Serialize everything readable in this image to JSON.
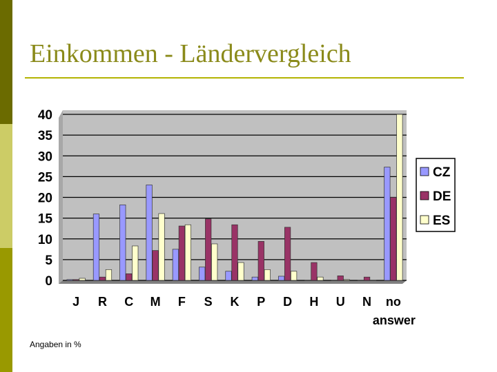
{
  "slide": {
    "title": "Einkommen - Ländervergleich",
    "note": "Angaben in %"
  },
  "colors": {
    "stripe_dark": "#6b6b00",
    "stripe_light": "#cccc66",
    "stripe_mid": "#999900",
    "title": "#8a8a1a",
    "plot_bg": "#c0c0c0"
  },
  "chart_data": {
    "type": "bar",
    "title": "",
    "xlabel": "",
    "ylabel": "",
    "ylim": [
      0,
      40
    ],
    "yticks": [
      0,
      5,
      10,
      15,
      20,
      25,
      30,
      35,
      40
    ],
    "grid": true,
    "legend_position": "right",
    "categories": [
      "J",
      "R",
      "C",
      "M",
      "F",
      "S",
      "K",
      "P",
      "D",
      "H",
      "U",
      "N",
      "no answer"
    ],
    "series": [
      {
        "name": "CZ",
        "color": "#9999ff",
        "values": [
          0.2,
          16,
          18.2,
          23,
          7.5,
          3.2,
          2.2,
          0.8,
          1.0,
          0,
          0,
          0,
          27.3
        ]
      },
      {
        "name": "DE",
        "color": "#993366",
        "values": [
          0.2,
          0.8,
          1.6,
          7.2,
          13.1,
          14.8,
          13.4,
          9.4,
          12.8,
          4.3,
          1.1,
          0.8,
          20
        ]
      },
      {
        "name": "ES",
        "color": "#ffffcc",
        "values": [
          0.5,
          2.6,
          8.3,
          16.1,
          13.4,
          8.8,
          4.3,
          2.6,
          2.2,
          0.8,
          0.2,
          0,
          40
        ]
      }
    ]
  }
}
